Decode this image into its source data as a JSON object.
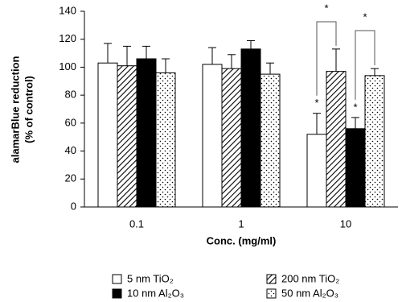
{
  "chart_data": {
    "type": "bar",
    "y_label_lines": [
      "alamarBlue reduction",
      "(% of control)"
    ],
    "x_label": "Conc. (mg/ml)",
    "categories": [
      "0.1",
      "1",
      "10"
    ],
    "series": [
      {
        "name": "5 nm TiO₂",
        "color": "#ffffff",
        "pattern": "none",
        "values": [
          103,
          102,
          52
        ],
        "errors": [
          14,
          12,
          15
        ]
      },
      {
        "name": "200 nm TiO₂",
        "color": "#ffffff",
        "pattern": "diagonal",
        "values": [
          101,
          99,
          97
        ],
        "errors": [
          14,
          10,
          16
        ]
      },
      {
        "name": "10 nm Al₂O₃",
        "color": "#000000",
        "pattern": "none",
        "values": [
          106,
          113,
          56
        ],
        "errors": [
          9,
          6,
          8
        ]
      },
      {
        "name": "50 nm Al₂O₃",
        "color": "#ffffff",
        "pattern": "dots",
        "values": [
          96,
          95,
          94
        ],
        "errors": [
          10,
          8,
          5
        ]
      }
    ],
    "annotations": [
      "*",
      "*",
      "*",
      "*"
    ],
    "ylim": [
      0,
      140
    ],
    "yticks": [
      0,
      20,
      40,
      60,
      80,
      100,
      120,
      140
    ],
    "grid": false
  }
}
